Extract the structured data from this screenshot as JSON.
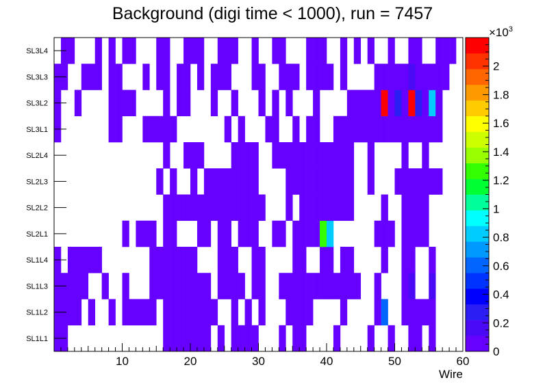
{
  "chart_data": {
    "type": "heatmap",
    "title": "Background (digi time < 1000), run = 7457",
    "xlabel": "Wire",
    "ylabel": "",
    "xlim": [
      0,
      60
    ],
    "x_ticks": [
      "10",
      "20",
      "30",
      "40",
      "50",
      "60"
    ],
    "y_categories": [
      "SL1L1",
      "SL1L2",
      "SL1L3",
      "SL1L4",
      "SL2L1",
      "SL2L2",
      "SL2L3",
      "SL2L4",
      "SL3L1",
      "SL3L2",
      "SL3L3",
      "SL3L4"
    ],
    "z_range": [
      0,
      2.2
    ],
    "z_exponent_label": "×10",
    "z_exponent": "3",
    "z_ticks": [
      "0",
      "0.2",
      "0.4",
      "0.6",
      "0.8",
      "1",
      "1.2",
      "1.4",
      "1.6",
      "1.8",
      "2"
    ],
    "palette": [
      "#6600ff",
      "#4b0af5",
      "#2a1ef5",
      "#0000ff",
      "#0033ff",
      "#0066ff",
      "#0099ff",
      "#00ccff",
      "#00ffff",
      "#00ff99",
      "#00ff33",
      "#33ff00",
      "#99ff00",
      "#ccff00",
      "#ffff00",
      "#ffcc00",
      "#ff9900",
      "#ff6600",
      "#ff3300",
      "#ff0000"
    ],
    "rows": [
      {
        "layer": "SL1L1",
        "bins": "1,2 17-22 23 25 27 28 29 30 34 36 37 42 47 50 53,54 56"
      },
      {
        "layer": "SL1L2",
        "bins": "1-4 6 9 11-15 17-24 27 29 31 35 35-38 43 48 49 52-56"
      },
      {
        "layer": "SL1L3",
        "bins": "1-5 8 11 15-23 25-28 30 31 34-45 48 52 53 56"
      },
      {
        "layer": "SL1L4",
        "bins": "1 3-7 15-21 25-27 30-31 36-37 40-41 43-44 49 52-53 56"
      },
      {
        "layer": "SL2L1",
        "bins": "11 13-15 17-18 22-23 25-26 28-30 33-34 36-41 40 48-50 52-55"
      },
      {
        "layer": "SL2L2",
        "bins": "17-31 35 37-44 49 52-55"
      },
      {
        "layer": "SL2L3",
        "bins": "16 18 21 23-30 35-44 47 51-57"
      },
      {
        "layer": "SL2L4",
        "bins": "17 20-22 27-30 33-44 47 52 55"
      },
      {
        "layer": "SL3L1",
        "bins": "1 9-10 14-18 26 28 32-33 36 38-39 42-47 48-57"
      },
      {
        "layer": "SL3L2",
        "bins": "1 4 9-12 17 19-20 24 27 31 33 35 39 44-47 48-57"
      },
      {
        "layer": "SL3L3",
        "bins": "1-2 5-7 9-10 14 16-17 19-20 22 24-26 30-31 34-36 38-41 43 48-58"
      },
      {
        "layer": "SL3L4",
        "bins": "2-3 7 9 11-12 16-17 20-22 25-27 30 33-34 38-40 43 45 47 50 53-54 57-59"
      }
    ],
    "hot_cells": [
      {
        "layer": "SL3L2",
        "wire": 49,
        "value": 2.1
      },
      {
        "layer": "SL3L2",
        "wire": 51,
        "value": 0.25
      },
      {
        "layer": "SL3L2",
        "wire": 53,
        "value": 2.15
      },
      {
        "layer": "SL3L2",
        "wire": 54,
        "value": 0.25
      },
      {
        "layer": "SL3L2",
        "wire": 56,
        "value": 0.8
      },
      {
        "layer": "SL3L3",
        "wire": 53,
        "value": 0.15
      },
      {
        "layer": "SL2L1",
        "wire": 40,
        "value": 1.3
      },
      {
        "layer": "SL2L1",
        "wire": 41,
        "value": 0.85
      },
      {
        "layer": "SL1L2",
        "wire": 49,
        "value": 0.55
      },
      {
        "layer": "SL1L3",
        "wire": 53,
        "value": 0.15
      },
      {
        "layer": "SL1L3",
        "wire": 56,
        "value": 0.15
      }
    ]
  }
}
